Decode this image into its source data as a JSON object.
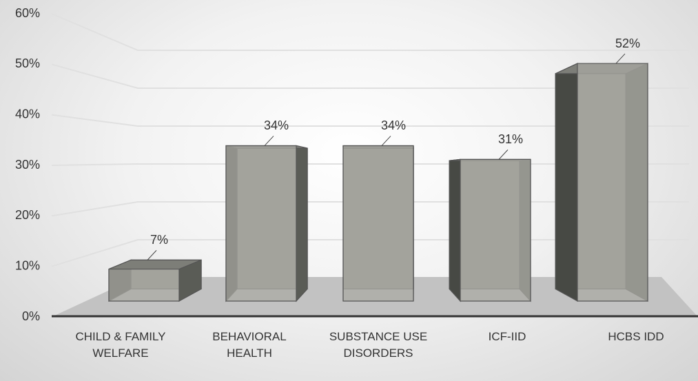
{
  "chart_data": {
    "type": "bar3d",
    "categories": [
      "CHILD & FAMILY WELFARE",
      "BEHAVIORAL HEALTH",
      "SUBSTANCE USE DISORDERS",
      "ICF-IID",
      "HCBS IDD"
    ],
    "values": [
      7,
      34,
      34,
      31,
      52
    ],
    "value_labels": [
      "7%",
      "34%",
      "34%",
      "31%",
      "52%"
    ],
    "color": "#a9aaa3",
    "ylim": [
      0,
      60
    ],
    "yticks": [
      {
        "value": 0,
        "label": "0%"
      },
      {
        "value": 10,
        "label": "10%"
      },
      {
        "value": 20,
        "label": "20%"
      },
      {
        "value": 30,
        "label": "30%"
      },
      {
        "value": 40,
        "label": "40%"
      },
      {
        "value": 50,
        "label": "50%"
      },
      {
        "value": 60,
        "label": "60%"
      }
    ],
    "grid": true
  }
}
